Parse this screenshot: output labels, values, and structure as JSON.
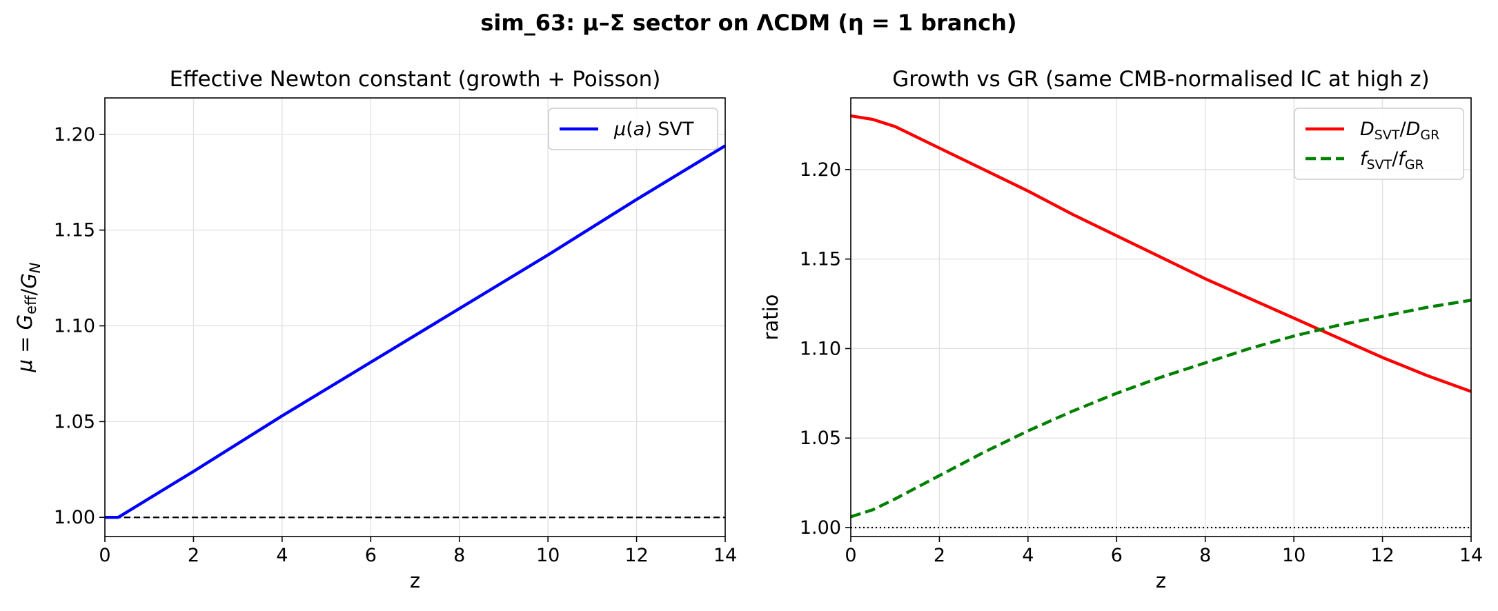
{
  "figure": {
    "title": "sim_63: μ–Σ sector on ΛCDM (η = 1 branch)"
  },
  "chart_data": [
    {
      "type": "line",
      "title": "Effective Newton constant (growth + Poisson)",
      "xlabel": "z",
      "ylabel": "μ = G_eff/G_N",
      "xlim": [
        0,
        14
      ],
      "ylim": [
        0.99,
        1.219
      ],
      "xticks": [
        "0",
        "2",
        "4",
        "6",
        "8",
        "10",
        "12",
        "14"
      ],
      "yticks": [
        "1.00",
        "1.05",
        "1.10",
        "1.15",
        "1.20"
      ],
      "grid": true,
      "legend_position": "top-right",
      "series": [
        {
          "name": "μ(a) SVT",
          "color": "#0000ff",
          "style": "solid",
          "x": [
            0,
            0.3,
            2,
            4,
            6,
            8,
            10,
            12,
            14
          ],
          "y": [
            1.0,
            1.0,
            1.024,
            1.053,
            1.081,
            1.109,
            1.137,
            1.166,
            1.194
          ]
        }
      ],
      "reference_lines": [
        {
          "y": 1.0,
          "color": "#000000",
          "style": "dashed"
        }
      ]
    },
    {
      "type": "line",
      "title": "Growth vs GR (same CMB-normalised IC at high z)",
      "xlabel": "z",
      "ylabel": "ratio",
      "xlim": [
        0,
        14
      ],
      "ylim": [
        0.995,
        1.24
      ],
      "xticks": [
        "0",
        "2",
        "4",
        "6",
        "8",
        "10",
        "12",
        "14"
      ],
      "yticks": [
        "1.00",
        "1.05",
        "1.10",
        "1.15",
        "1.20"
      ],
      "grid": true,
      "legend_position": "top-right",
      "series": [
        {
          "name_main": "D",
          "name_sub": "SVT",
          "name_sep": "/",
          "name_main2": "D",
          "name_sub2": "GR",
          "color": "#ff0000",
          "style": "solid",
          "x": [
            0,
            0.5,
            1,
            2,
            3,
            4,
            5,
            6,
            7,
            8,
            9,
            10,
            11,
            12,
            13,
            14
          ],
          "y": [
            1.23,
            1.228,
            1.224,
            1.212,
            1.2,
            1.188,
            1.175,
            1.163,
            1.151,
            1.139,
            1.128,
            1.117,
            1.106,
            1.095,
            1.085,
            1.076
          ]
        },
        {
          "name_main": "f",
          "name_sub": "SVT",
          "name_sep": "/",
          "name_main2": "f",
          "name_sub2": "GR",
          "color": "#008000",
          "style": "dashed",
          "x": [
            0,
            0.5,
            1,
            2,
            3,
            4,
            5,
            6,
            7,
            8,
            9,
            10,
            11,
            12,
            13,
            14
          ],
          "y": [
            1.006,
            1.01,
            1.016,
            1.029,
            1.042,
            1.054,
            1.065,
            1.075,
            1.084,
            1.092,
            1.1,
            1.107,
            1.113,
            1.118,
            1.123,
            1.127
          ]
        }
      ],
      "reference_lines": [
        {
          "y": 1.0,
          "color": "#000000",
          "style": "dotted"
        }
      ]
    }
  ]
}
